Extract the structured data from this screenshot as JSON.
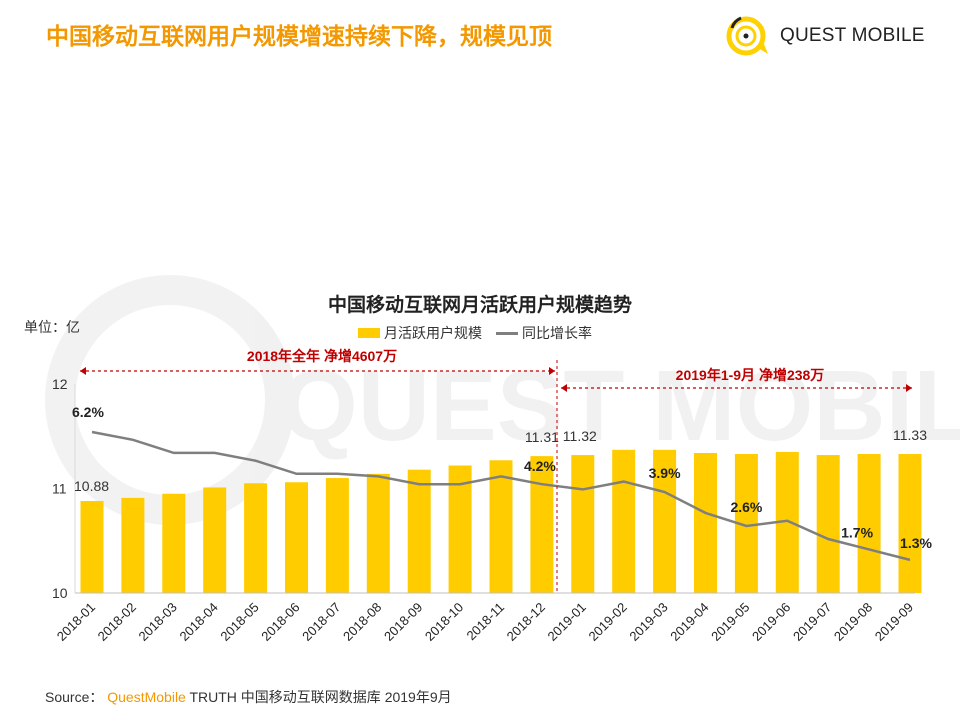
{
  "header": {
    "title": "中国移动互联网用户规模增速持续下降，规模见顶",
    "logo_text": "QUEST MOBILE"
  },
  "source": {
    "label": "Source：",
    "brand": "QuestMobile",
    "text": "TRUTH 中国移动互联网数据库 2019年9月"
  },
  "chart_data": {
    "type": "bar+line",
    "title": "中国移动互联网月活跃用户规模趋势",
    "ylabel": "单位：亿",
    "ylim": [
      10,
      12
    ],
    "yticks": [
      "10",
      "11",
      "12"
    ],
    "legend_position": "top",
    "categories": [
      "2018-01",
      "2018-02",
      "2018-03",
      "2018-04",
      "2018-05",
      "2018-06",
      "2018-07",
      "2018-08",
      "2018-09",
      "2018-10",
      "2018-11",
      "2018-12",
      "2019-01",
      "2019-02",
      "2019-03",
      "2019-04",
      "2019-05",
      "2019-06",
      "2019-07",
      "2019-08",
      "2019-09"
    ],
    "series": [
      {
        "name": "月活跃用户规模",
        "type": "bar",
        "color": "#FFCC00",
        "values": [
          10.88,
          10.91,
          10.95,
          11.01,
          11.05,
          11.06,
          11.1,
          11.14,
          11.18,
          11.22,
          11.27,
          11.31,
          11.32,
          11.37,
          11.37,
          11.34,
          11.33,
          11.35,
          11.32,
          11.33,
          11.33
        ],
        "labels": {
          "0": "10.88",
          "11": "11.31",
          "12": "11.32",
          "20": "11.33"
        }
      },
      {
        "name": "同比增长率",
        "type": "line",
        "color": "#7f7f7f",
        "unit": "%",
        "values": [
          6.2,
          5.9,
          5.4,
          5.4,
          5.1,
          4.6,
          4.6,
          4.5,
          4.2,
          4.2,
          4.5,
          4.2,
          4.0,
          4.3,
          3.9,
          3.1,
          2.6,
          2.8,
          2.1,
          1.7,
          1.3
        ],
        "labels": {
          "0": "6.2%",
          "11": "4.2%",
          "14": "3.9%",
          "16": "2.6%",
          "19": "1.7%",
          "20": "1.3%"
        }
      }
    ],
    "annotations": [
      {
        "text": "2018年全年 净增4607万",
        "from": "2018-01",
        "to": "2018-12",
        "color": "#C00000"
      },
      {
        "text": "2019年1-9月 净增238万",
        "from": "2019-01",
        "to": "2019-09",
        "color": "#C00000"
      }
    ]
  }
}
